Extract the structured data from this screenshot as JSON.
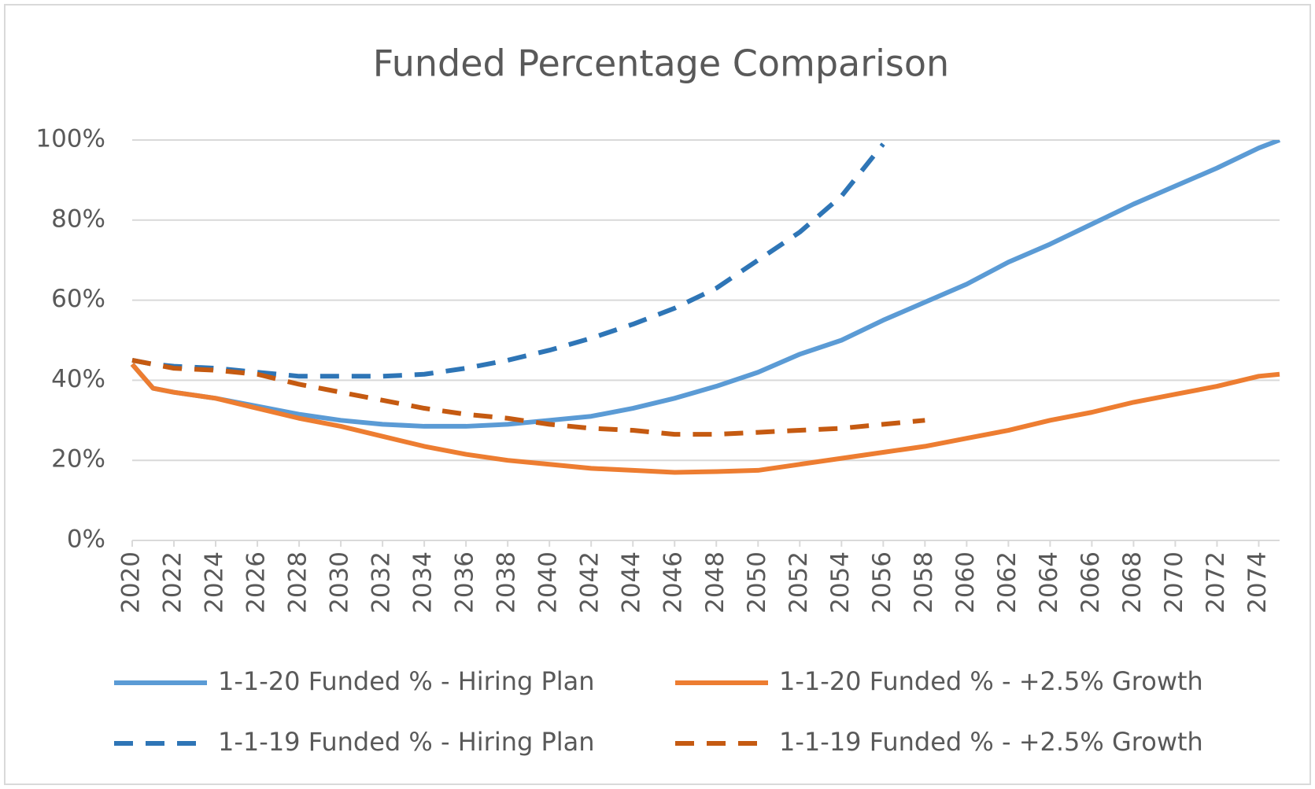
{
  "chart_data": {
    "type": "line",
    "title": "Funded Percentage Comparison",
    "x": [
      2020,
      2021,
      2022,
      2024,
      2026,
      2028,
      2030,
      2032,
      2034,
      2036,
      2038,
      2040,
      2042,
      2044,
      2046,
      2048,
      2050,
      2052,
      2054,
      2056,
      2058,
      2060,
      2062,
      2064,
      2066,
      2068,
      2070,
      2072,
      2074,
      2075
    ],
    "xlim": [
      2020,
      2075
    ],
    "xticks": [
      2020,
      2022,
      2024,
      2026,
      2028,
      2030,
      2032,
      2034,
      2036,
      2038,
      2040,
      2042,
      2044,
      2046,
      2048,
      2050,
      2052,
      2054,
      2056,
      2058,
      2060,
      2062,
      2064,
      2066,
      2068,
      2070,
      2072,
      2074
    ],
    "ylim": [
      0,
      100
    ],
    "yticks": [
      {
        "value": 0,
        "label": "0%"
      },
      {
        "value": 20,
        "label": "20%"
      },
      {
        "value": 40,
        "label": "40%"
      },
      {
        "value": 60,
        "label": "60%"
      },
      {
        "value": 80,
        "label": "80%"
      },
      {
        "value": 100,
        "label": "100%"
      }
    ],
    "grid": true,
    "legend": "bottom",
    "series": [
      {
        "name": "1-1-20 Funded % - Hiring Plan",
        "color": "#5b9bd5",
        "dashed": false,
        "values": [
          44,
          38,
          37,
          35.5,
          33.5,
          31.5,
          30,
          29,
          28.5,
          28.5,
          29,
          30,
          31,
          33,
          35.5,
          38.5,
          42,
          46.5,
          50,
          55,
          59.5,
          64,
          69.5,
          74,
          79,
          84,
          88.5,
          93,
          98,
          100
        ]
      },
      {
        "name": "1-1-20 Funded % - +2.5% Growth",
        "color": "#ed7d31",
        "dashed": false,
        "values": [
          44,
          38,
          37,
          35.5,
          33,
          30.5,
          28.5,
          26,
          23.5,
          21.5,
          20,
          19,
          18,
          17.5,
          17,
          17.2,
          17.5,
          19,
          20.5,
          22,
          23.5,
          25.5,
          27.5,
          30,
          32,
          34.5,
          36.5,
          38.5,
          41,
          41.5
        ]
      },
      {
        "name": "1-1-19 Funded % - Hiring Plan",
        "color": "#2e75b6",
        "dashed": true,
        "values": [
          45,
          44,
          43.5,
          43,
          42,
          41,
          41,
          41,
          41.5,
          43,
          45,
          47.5,
          50.5,
          54,
          58,
          63,
          70,
          77,
          86,
          99,
          null,
          null,
          null,
          null,
          null,
          null,
          null,
          null,
          null,
          null
        ]
      },
      {
        "name": "1-1-19 Funded % - +2.5% Growth",
        "color": "#c55a11",
        "dashed": true,
        "values": [
          45,
          44,
          43,
          42.5,
          41.5,
          39,
          37,
          35,
          33,
          31.5,
          30.5,
          29,
          28,
          27.5,
          26.5,
          26.5,
          27,
          27.5,
          28,
          29,
          30,
          null,
          null,
          null,
          null,
          null,
          null,
          null,
          null,
          null
        ]
      }
    ]
  }
}
